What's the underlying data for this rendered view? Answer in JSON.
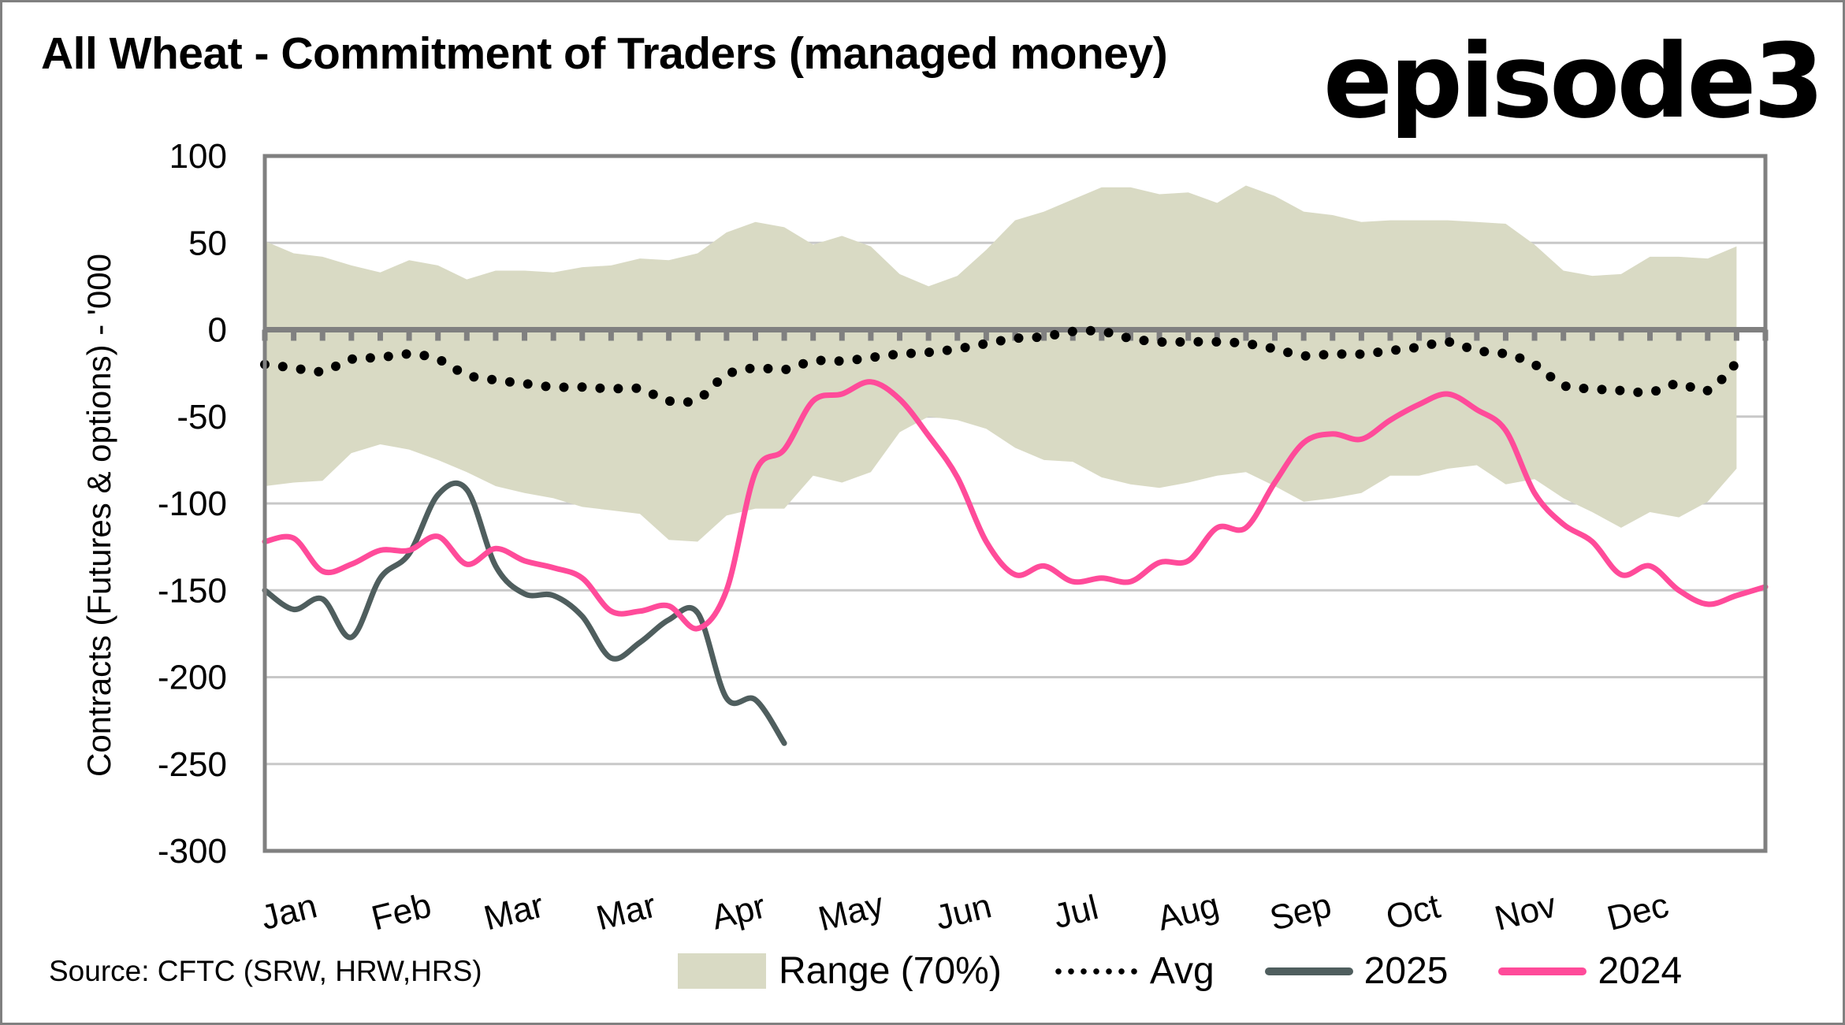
{
  "title": "All Wheat - Commitment of Traders (managed money)",
  "brand": "episode3",
  "source": "Source: CFTC (SRW, HRW,HRS)",
  "colors": {
    "range": "#D9DAC4",
    "avg": "#000000",
    "y2025": "#4F5E5E",
    "y2024": "#FF4B9A",
    "axis": "#808080",
    "grid": "#C8C8C8"
  },
  "chart_data": {
    "type": "area",
    "title": "All Wheat - Commitment of Traders (managed money)",
    "xlabel": "",
    "ylabel": "Contracts (Futures & options) - '000",
    "ylim": [
      -300,
      100
    ],
    "yticks": [
      100,
      50,
      0,
      -50,
      -100,
      -150,
      -200,
      -250,
      -300
    ],
    "ytick_labels": [
      "100",
      "50",
      "0",
      "-50",
      "-100",
      "-150",
      "-200",
      "-250",
      "-300"
    ],
    "x_unit": "week of year",
    "xlim": [
      1,
      53
    ],
    "month_labels": [
      "Jan",
      "Feb",
      "Mar",
      "Mar",
      "Apr",
      "May",
      "Jun",
      "Jul",
      "Aug",
      "Sep",
      "Oct",
      "Nov",
      "Dec"
    ],
    "grid": true,
    "legend_position": "bottom",
    "legend": [
      "Range (70%)",
      "Avg",
      "2025",
      "2024"
    ],
    "series": [
      {
        "name": "Range (70%) upper",
        "values": [
          51,
          44,
          42,
          37,
          33,
          40,
          37,
          29,
          34,
          34,
          33,
          36,
          37,
          41,
          40,
          44,
          56,
          62,
          59,
          49,
          54,
          48,
          32,
          25,
          31,
          46,
          63,
          68,
          75,
          82,
          82,
          78,
          79,
          73,
          83,
          77,
          68,
          66,
          62,
          63,
          63,
          63,
          62,
          61,
          49,
          34,
          31,
          32,
          42,
          42,
          41,
          48
        ]
      },
      {
        "name": "Range (70%) lower",
        "values": [
          -90,
          -88,
          -87,
          -71,
          -66,
          -69,
          -75,
          -82,
          -90,
          -94,
          -97,
          -102,
          -104,
          -106,
          -121,
          -122,
          -107,
          -103,
          -103,
          -84,
          -88,
          -82,
          -59,
          -50,
          -52,
          -57,
          -68,
          -75,
          -76,
          -85,
          -89,
          -91,
          -88,
          -84,
          -82,
          -90,
          -99,
          -97,
          -94,
          -84,
          -84,
          -80,
          -78,
          -89,
          -86,
          -97,
          -105,
          -114,
          -105,
          -108,
          -99,
          -80
        ]
      },
      {
        "name": "Avg",
        "values": [
          -20,
          -22,
          -24,
          -17,
          -16,
          -14,
          -17,
          -26,
          -29,
          -31,
          -33,
          -33,
          -34,
          -34,
          -41,
          -40,
          -26,
          -22,
          -23,
          -18,
          -18,
          -16,
          -14,
          -13,
          -11,
          -8,
          -5,
          -4,
          -1,
          -1,
          -5,
          -7,
          -7,
          -7,
          -8,
          -11,
          -15,
          -14,
          -14,
          -12,
          -10,
          -7,
          -12,
          -14,
          -20,
          -32,
          -34,
          -35,
          -36,
          -31,
          -35,
          -19
        ]
      },
      {
        "name": "2025",
        "values": [
          -150,
          -161,
          -155,
          -177,
          -143,
          -129,
          -95,
          -92,
          -136,
          -152,
          -153,
          -165,
          -189,
          -180,
          -167,
          -163,
          -212,
          -213,
          -238
        ]
      },
      {
        "name": "2024",
        "values": [
          -122,
          -120,
          -139,
          -135,
          -127,
          -127,
          -119,
          -135,
          -126,
          -133,
          -137,
          -143,
          -162,
          -162,
          -159,
          -172,
          -150,
          -82,
          -69,
          -41,
          -37,
          -30,
          -40,
          -61,
          -85,
          -122,
          -141,
          -136,
          -145,
          -143,
          -145,
          -134,
          -133,
          -114,
          -114,
          -88,
          -65,
          -60,
          -63,
          -52,
          -43,
          -37,
          -46,
          -58,
          -94,
          -112,
          -122,
          -141,
          -136,
          -150,
          -158,
          -153,
          -148
        ]
      }
    ]
  },
  "legend": {
    "range": "Range (70%)",
    "avg": "Avg",
    "y2025": "2025",
    "y2024": "2024"
  }
}
